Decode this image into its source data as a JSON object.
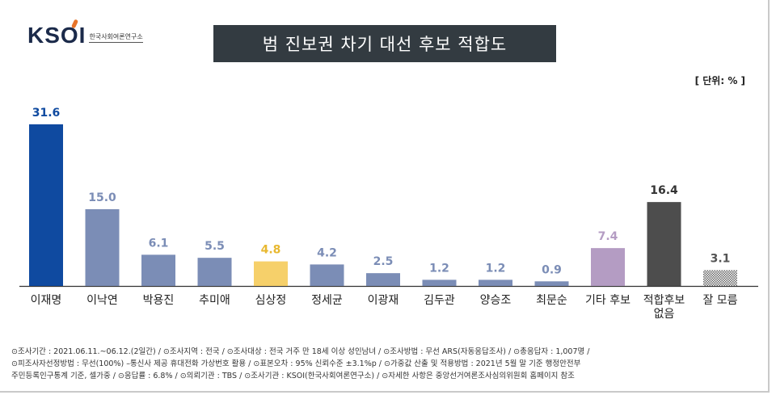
{
  "logo": {
    "mark": "KSOI",
    "subtitle": "한국사회여론연구소"
  },
  "title": "범 진보권 차기 대선 후보 적합도",
  "unit": "[ 단위: % ]",
  "chart_data": {
    "type": "bar",
    "categories": [
      "이재명",
      "이낙연",
      "박용진",
      "추미애",
      "심상정",
      "정세균",
      "이광재",
      "김두관",
      "양승조",
      "최문순",
      "기타 후보",
      "적합후보\n없음",
      "잘 모름"
    ],
    "values": [
      31.6,
      15.0,
      6.1,
      5.5,
      4.8,
      4.2,
      2.5,
      1.2,
      1.2,
      0.9,
      7.4,
      16.4,
      3.1
    ],
    "value_labels": [
      "31.6",
      "15.0",
      "6.1",
      "5.5",
      "4.8",
      "4.2",
      "2.5",
      "1.2",
      "1.2",
      "0.9",
      "7.4",
      "16.4",
      "3.1"
    ],
    "bar_colors": [
      "#0f4aa0",
      "#7b8db6",
      "#7b8db6",
      "#7b8db6",
      "#f6d06a",
      "#7b8db6",
      "#7b8db6",
      "#7b8db6",
      "#7b8db6",
      "#7b8db6",
      "#b49cc3",
      "#4d4d4d",
      "hatched"
    ],
    "label_colors": [
      "#0f4aa0",
      "#7b8db6",
      "#7b8db6",
      "#7b8db6",
      "#e8b830",
      "#7b8db6",
      "#7b8db6",
      "#7b8db6",
      "#7b8db6",
      "#7b8db6",
      "#b49cc3",
      "#333333",
      "#555555"
    ],
    "title": "범 진보권 차기 대선 후보 적합도",
    "xlabel": "",
    "ylabel": "",
    "ylim": [
      0,
      33
    ],
    "grid": false,
    "legend": "none"
  },
  "footnote": {
    "line1": "⊙조사기간 : 2021.06.11.~06.12.(2일간) / ⊙조사지역 : 전국 / ⊙조사대상 : 전국 거주 만 18세 이상 성인남녀 / ⊙조사방법 : 무선 ARS(자동응답조사) / ⊙총응답자 : 1,007명 /",
    "line2": "⊙피조사자선정방법 : 무선(100%) –통신사 제공 휴대전화 가상번호 활용 / ⊙표본오차 : 95% 신뢰수준 ±3.1%p / ⊙가중값 산출 및 적용방법 : 2021년 5월 말 기준 행정안전부",
    "line3": "주민등록인구통계 기준, 셀가중 / ⊙응답률 : 6.8% / ⊙의뢰기관 : TBS / ⊙조사기관 : KSOI(한국사회여론연구소) / ⊙자세한 사항은 중앙선거여론조사심의위원회 홈페이지 참조"
  }
}
